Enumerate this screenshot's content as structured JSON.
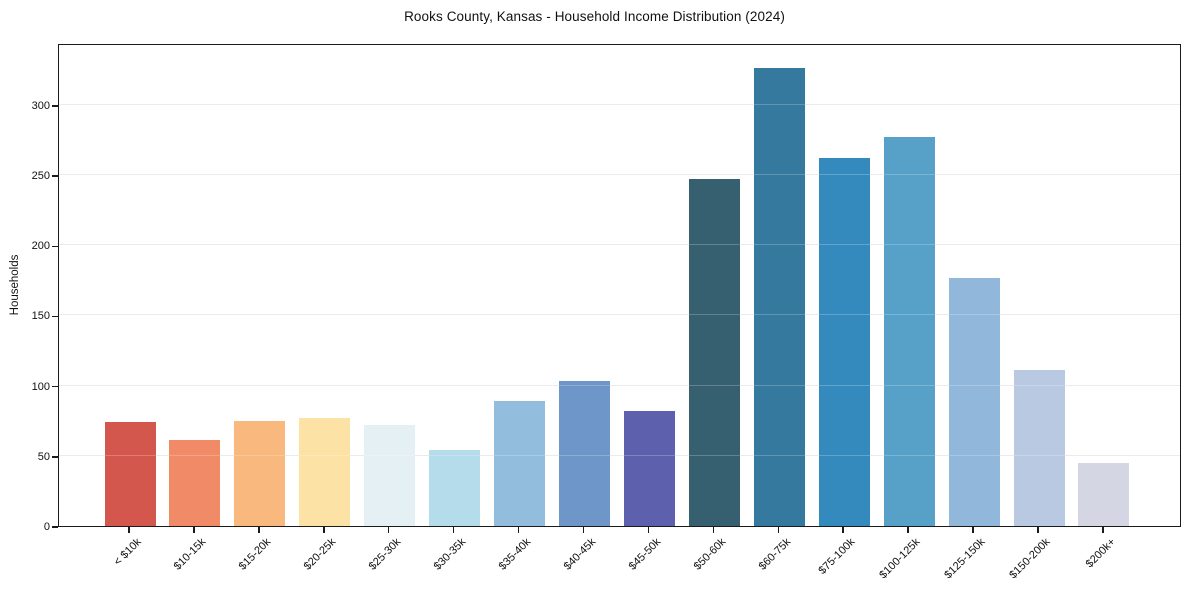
{
  "chart_data": {
    "type": "bar",
    "title": "Rooks County, Kansas - Household Income Distribution (2024)",
    "xlabel": "",
    "ylabel": "Households",
    "categories": [
      "< $10k",
      "$10-15k",
      "$15-20k",
      "$20-25k",
      "$25-30k",
      "$30-35k",
      "$35-40k",
      "$40-45k",
      "$45-50k",
      "$50-60k",
      "$60-75k",
      "$75-100k",
      "$100-125k",
      "$125-150k",
      "$150-200k",
      "$200k+"
    ],
    "values": [
      74,
      61,
      75,
      77,
      72,
      54,
      89,
      103,
      82,
      247,
      326,
      262,
      277,
      177,
      111,
      45
    ],
    "bar_colors": [
      "#d4574e",
      "#f08a67",
      "#f9b87d",
      "#fce3a5",
      "#e4f0f4",
      "#b5dcea",
      "#93bddd",
      "#6e96c9",
      "#5d60ad",
      "#36606f",
      "#35799e",
      "#348abd",
      "#57a1c8",
      "#91b8da",
      "#bac9e2",
      "#d4d6e4"
    ],
    "yticks": [
      0,
      50,
      100,
      150,
      200,
      250,
      300
    ],
    "ylim": [
      0,
      342
    ],
    "grid": "horizontal-only",
    "legend": "none",
    "plot_background": "#ffffff",
    "spine_color": "#1a1a1a",
    "grid_color": "#e6e6e6"
  }
}
